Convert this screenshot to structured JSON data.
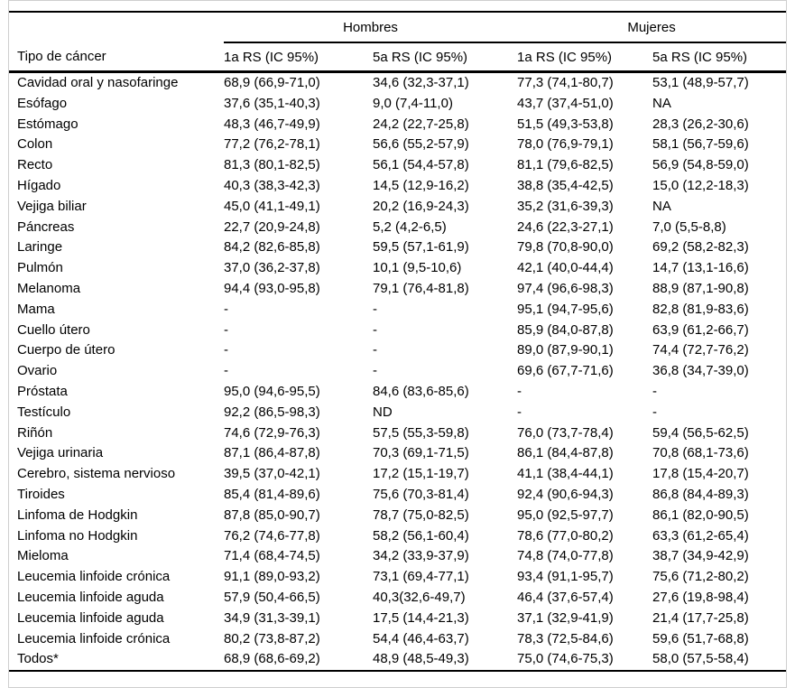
{
  "header": {
    "row_label_header": "Tipo de cáncer",
    "groups": [
      {
        "label": "Hombres",
        "sub": [
          "1a RS (IC 95%)",
          "5a RS (IC 95%)"
        ]
      },
      {
        "label": "Mujeres",
        "sub": [
          "1a RS (IC 95%)",
          "5a RS (IC 95%)"
        ]
      }
    ]
  },
  "rows": [
    {
      "label": "Cavidad oral y nasofaringe",
      "values": [
        "68,9 (66,9-71,0)",
        "34,6 (32,3-37,1)",
        "77,3 (74,1-80,7)",
        "53,1 (48,9-57,7)"
      ]
    },
    {
      "label": "Esófago",
      "values": [
        "37,6 (35,1-40,3)",
        "9,0 (7,4-11,0)",
        "43,7 (37,4-51,0)",
        "NA"
      ]
    },
    {
      "label": "Estómago",
      "values": [
        "48,3 (46,7-49,9)",
        "24,2 (22,7-25,8)",
        "51,5 (49,3-53,8)",
        "28,3 (26,2-30,6)"
      ]
    },
    {
      "label": "Colon",
      "values": [
        "77,2 (76,2-78,1)",
        "56,6 (55,2-57,9)",
        "78,0 (76,9-79,1)",
        "58,1 (56,7-59,6)"
      ]
    },
    {
      "label": "Recto",
      "values": [
        "81,3 (80,1-82,5)",
        "56,1 (54,4-57,8)",
        "81,1 (79,6-82,5)",
        "56,9 (54,8-59,0)"
      ]
    },
    {
      "label": "Hígado",
      "values": [
        "40,3 (38,3-42,3)",
        "14,5 (12,9-16,2)",
        "38,8 (35,4-42,5)",
        "15,0 (12,2-18,3)"
      ]
    },
    {
      "label": "Vejiga biliar",
      "values": [
        "45,0 (41,1-49,1)",
        "20,2 (16,9-24,3)",
        "35,2 (31,6-39,3)",
        "NA"
      ]
    },
    {
      "label": "Páncreas",
      "values": [
        "22,7 (20,9-24,8)",
        "5,2 (4,2-6,5)",
        "24,6 (22,3-27,1)",
        "7,0 (5,5-8,8)"
      ]
    },
    {
      "label": "Laringe",
      "values": [
        "84,2 (82,6-85,8)",
        "59,5 (57,1-61,9)",
        "79,8 (70,8-90,0)",
        "69,2 (58,2-82,3)"
      ]
    },
    {
      "label": "Pulmón",
      "values": [
        "37,0 (36,2-37,8)",
        "10,1 (9,5-10,6)",
        "42,1 (40,0-44,4)",
        "14,7 (13,1-16,6)"
      ]
    },
    {
      "label": "Melanoma",
      "values": [
        "94,4 (93,0-95,8)",
        "79,1 (76,4-81,8)",
        "97,4 (96,6-98,3)",
        "88,9 (87,1-90,8)"
      ]
    },
    {
      "label": "Mama",
      "values": [
        "-",
        "-",
        "95,1 (94,7-95,6)",
        "82,8 (81,9-83,6)"
      ]
    },
    {
      "label": "Cuello útero",
      "values": [
        "-",
        "-",
        "85,9 (84,0-87,8)",
        "63,9 (61,2-66,7)"
      ]
    },
    {
      "label": "Cuerpo de útero",
      "values": [
        "-",
        "-",
        "89,0 (87,9-90,1)",
        "74,4 (72,7-76,2)"
      ]
    },
    {
      "label": "Ovario",
      "values": [
        "-",
        "-",
        "69,6 (67,7-71,6)",
        "36,8 (34,7-39,0)"
      ]
    },
    {
      "label": "Próstata",
      "values": [
        "95,0 (94,6-95,5)",
        "84,6 (83,6-85,6)",
        "-",
        "-"
      ]
    },
    {
      "label": "Testículo",
      "values": [
        "92,2 (86,5-98,3)",
        "ND",
        "-",
        "-"
      ]
    },
    {
      "label": "Riñón",
      "values": [
        "74,6 (72,9-76,3)",
        "57,5 (55,3-59,8)",
        "76,0 (73,7-78,4)",
        "59,4 (56,5-62,5)"
      ]
    },
    {
      "label": "Vejiga urinaria",
      "values": [
        "87,1 (86,4-87,8)",
        "70,3 (69,1-71,5)",
        "86,1 (84,4-87,8)",
        "70,8 (68,1-73,6)"
      ]
    },
    {
      "label": "Cerebro, sistema nervioso",
      "values": [
        "39,5 (37,0-42,1)",
        "17,2 (15,1-19,7)",
        "41,1 (38,4-44,1)",
        "17,8 (15,4-20,7)"
      ]
    },
    {
      "label": "Tiroides",
      "values": [
        "85,4 (81,4-89,6)",
        "75,6 (70,3-81,4)",
        "92,4 (90,6-94,3)",
        "86,8 (84,4-89,3)"
      ]
    },
    {
      "label": "Linfoma de Hodgkin",
      "values": [
        "87,8 (85,0-90,7)",
        "78,7 (75,0-82,5)",
        "95,0 (92,5-97,7)",
        "86,1 (82,0-90,5)"
      ]
    },
    {
      "label": "Linfoma no Hodgkin",
      "values": [
        "76,2 (74,6-77,8)",
        "58,2 (56,1-60,4)",
        "78,6 (77,0-80,2)",
        "63,3 (61,2-65,4)"
      ]
    },
    {
      "label": "Mieloma",
      "values": [
        "71,4 (68,4-74,5)",
        "34,2 (33,9-37,9)",
        "74,8 (74,0-77,8)",
        "38,7 (34,9-42,9)"
      ]
    },
    {
      "label": "Leucemia linfoide crónica",
      "values": [
        "91,1 (89,0-93,2)",
        "73,1 (69,4-77,1)",
        "93,4 (91,1-95,7)",
        "75,6 (71,2-80,2)"
      ]
    },
    {
      "label": "Leucemia linfoide aguda",
      "values": [
        "57,9 (50,4-66,5)",
        "40,3(32,6-49,7)",
        "46,4 (37,6-57,4)",
        "27,6 (19,8-98,4)"
      ]
    },
    {
      "label": "Leucemia linfoide aguda",
      "values": [
        "34,9 (31,3-39,1)",
        "17,5 (14,4-21,3)",
        "37,1 (32,9-41,9)",
        "21,4 (17,7-25,8)"
      ]
    },
    {
      "label": "Leucemia linfoide crónica",
      "values": [
        "80,2 (73,8-87,2)",
        "54,4 (46,4-63,7)",
        "78,3 (72,5-84,6)",
        "59,6 (51,7-68,8)"
      ]
    },
    {
      "label": "Todos*",
      "values": [
        "68,9 (68,6-69,2)",
        "48,9 (48,5-49,3)",
        "75,0 (74,6-75,3)",
        "58,0 (57,5-58,4)"
      ]
    }
  ],
  "colors": {
    "text": "#000000",
    "rule": "#000000",
    "frame_border": "#cfcfcf",
    "background": "#ffffff"
  }
}
